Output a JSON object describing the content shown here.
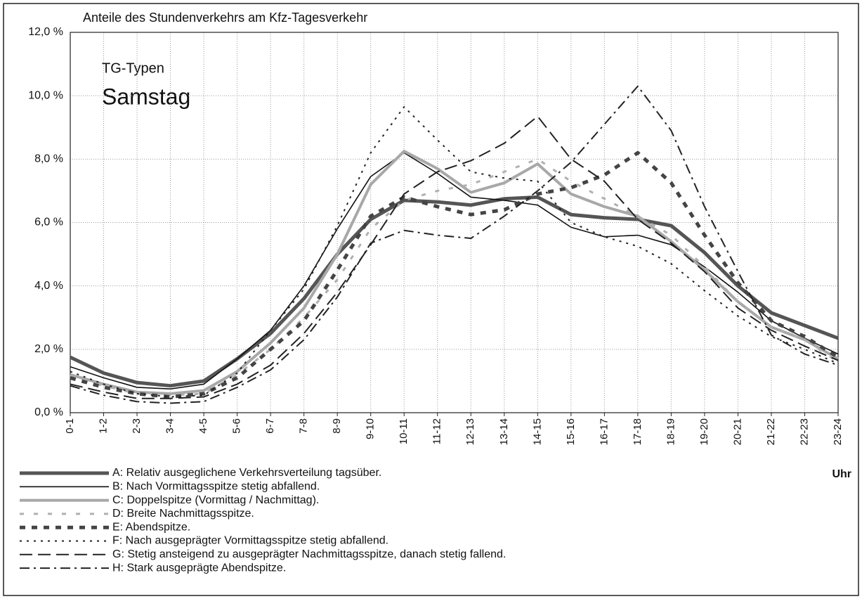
{
  "chart_data": {
    "type": "line",
    "title": "Anteile des Stundenverkehrs am Kfz-Tagesverkehr",
    "annotations": [
      "TG-Typen",
      "Samstag"
    ],
    "x_label": "Uhr",
    "categories": [
      "0-1",
      "1-2",
      "2-3",
      "3-4",
      "4-5",
      "5-6",
      "6-7",
      "7-8",
      "8-9",
      "9-10",
      "10-11",
      "11-12",
      "12-13",
      "13-14",
      "14-15",
      "15-16",
      "16-17",
      "17-18",
      "18-19",
      "19-20",
      "20-21",
      "21-22",
      "22-23",
      "23-24"
    ],
    "ylim": [
      0,
      12
    ],
    "yticks": [
      {
        "value": 0,
        "label": "0,0 %"
      },
      {
        "value": 2,
        "label": "2,0 %"
      },
      {
        "value": 4,
        "label": "4,0 %"
      },
      {
        "value": 6,
        "label": "6,0 %"
      },
      {
        "value": 8,
        "label": "8,0 %"
      },
      {
        "value": 10,
        "label": "10,0 %"
      },
      {
        "value": 12,
        "label": "12,0 %"
      }
    ],
    "grid": true,
    "series": [
      {
        "name": "A: Relativ ausgeglichene Verkehrsverteilung tagsüber.",
        "color": "#555555",
        "values": [
          1.75,
          1.25,
          0.95,
          0.85,
          1.0,
          1.7,
          2.5,
          3.6,
          5.0,
          6.1,
          6.7,
          6.65,
          6.55,
          6.75,
          6.8,
          6.25,
          6.15,
          6.1,
          5.9,
          5.05,
          4.0,
          3.15,
          2.75,
          2.35
        ]
      },
      {
        "name": "B: Nach Vormittagsspitze stetig abfallend.",
        "color": "#111111",
        "values": [
          1.45,
          1.1,
          0.8,
          0.75,
          0.9,
          1.7,
          2.6,
          4.0,
          5.8,
          7.45,
          8.2,
          7.55,
          6.8,
          6.7,
          6.55,
          5.85,
          5.55,
          5.6,
          5.3,
          4.6,
          3.8,
          2.9,
          2.35,
          1.85
        ]
      },
      {
        "name": "C: Doppelspitze (Vormittag / Nachmittag).",
        "color": "#a8a8a8",
        "values": [
          1.2,
          0.9,
          0.65,
          0.6,
          0.7,
          1.3,
          2.2,
          3.3,
          5.0,
          7.2,
          8.25,
          7.7,
          6.95,
          7.25,
          7.85,
          6.9,
          6.5,
          6.2,
          5.4,
          4.5,
          3.5,
          2.7,
          2.3,
          1.7
        ]
      },
      {
        "name": "D: Breite Nachmittagsspitze.",
        "color": "#b0b0b0",
        "values": [
          1.15,
          0.85,
          0.6,
          0.55,
          0.6,
          1.2,
          2.0,
          3.0,
          4.2,
          5.8,
          6.7,
          7.0,
          7.2,
          7.6,
          8.0,
          7.3,
          6.75,
          6.2,
          5.6,
          4.6,
          3.5,
          2.7,
          2.3,
          1.6
        ]
      },
      {
        "name": "E: Abendspitze.",
        "color": "#444444",
        "values": [
          1.1,
          0.8,
          0.6,
          0.5,
          0.6,
          1.1,
          2.0,
          2.9,
          4.5,
          6.2,
          6.8,
          6.5,
          6.25,
          6.4,
          6.9,
          7.1,
          7.5,
          8.2,
          7.25,
          5.6,
          4.1,
          2.9,
          2.4,
          1.75
        ]
      },
      {
        "name": "F: Nach ausgeprägter Vormittagsspitze stetig abfallend.",
        "color": "#222222",
        "values": [
          1.3,
          0.9,
          0.6,
          0.5,
          0.55,
          1.25,
          2.6,
          3.9,
          5.9,
          8.2,
          9.65,
          8.6,
          7.6,
          7.4,
          7.3,
          6.0,
          5.55,
          5.25,
          4.7,
          3.85,
          3.05,
          2.4,
          2.0,
          1.55
        ]
      },
      {
        "name": "G: Stetig ansteigend zu ausgeprägter Nachmittagsspitze, danach stetig fallend.",
        "color": "#222222",
        "values": [
          0.9,
          0.65,
          0.45,
          0.45,
          0.5,
          0.9,
          1.5,
          2.5,
          3.8,
          5.3,
          6.9,
          7.6,
          7.95,
          8.5,
          9.35,
          8.0,
          7.3,
          6.1,
          5.35,
          4.45,
          3.3,
          2.6,
          2.1,
          1.65
        ]
      },
      {
        "name": "H: Stark ausgeprägte Abendspitze.",
        "color": "#222222",
        "values": [
          0.85,
          0.55,
          0.35,
          0.3,
          0.35,
          0.8,
          1.35,
          2.3,
          3.65,
          5.35,
          5.75,
          5.6,
          5.5,
          6.2,
          7.0,
          7.9,
          9.1,
          10.3,
          8.9,
          6.5,
          4.45,
          2.45,
          1.85,
          1.5
        ]
      }
    ]
  }
}
